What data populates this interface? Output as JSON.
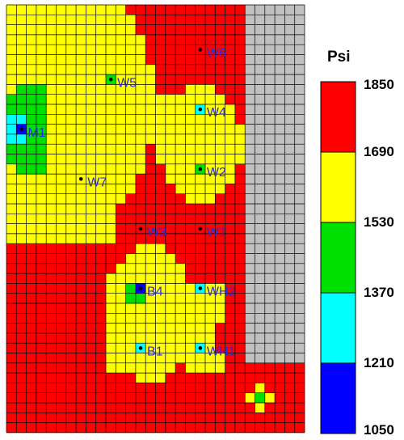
{
  "chart_data": {
    "type": "heatmap",
    "title": "",
    "legend_title": "Psi",
    "legend_ticks": [
      "1850",
      "1690",
      "1530",
      "1370",
      "1210",
      "1050"
    ],
    "color_bins": [
      {
        "min": 1690,
        "max": 1850,
        "color": "#ff0000"
      },
      {
        "min": 1530,
        "max": 1690,
        "color": "#ffff00"
      },
      {
        "min": 1370,
        "max": 1530,
        "color": "#00e000"
      },
      {
        "min": 1210,
        "max": 1370,
        "color": "#00ffff"
      },
      {
        "min": 1050,
        "max": 1210,
        "color": "#0000ff"
      }
    ],
    "inactive_color": "#c0c0c0",
    "grid": true,
    "legend_position": "right",
    "wells": [
      {
        "name": "W6",
        "pressure": 1760
      },
      {
        "name": "W5",
        "pressure": 1450
      },
      {
        "name": "W4",
        "pressure": 1290
      },
      {
        "name": "M1",
        "pressure": 1130
      },
      {
        "name": "W2",
        "pressure": 1450
      },
      {
        "name": "W7",
        "pressure": 1610
      },
      {
        "name": "W3",
        "pressure": 1760
      },
      {
        "name": "W1",
        "pressure": 1760
      },
      {
        "name": "B4",
        "pressure": 1130
      },
      {
        "name": "WH2",
        "pressure": 1290
      },
      {
        "name": "B1",
        "pressure": 1290
      },
      {
        "name": "WH1",
        "pressure": 1290
      }
    ]
  }
}
